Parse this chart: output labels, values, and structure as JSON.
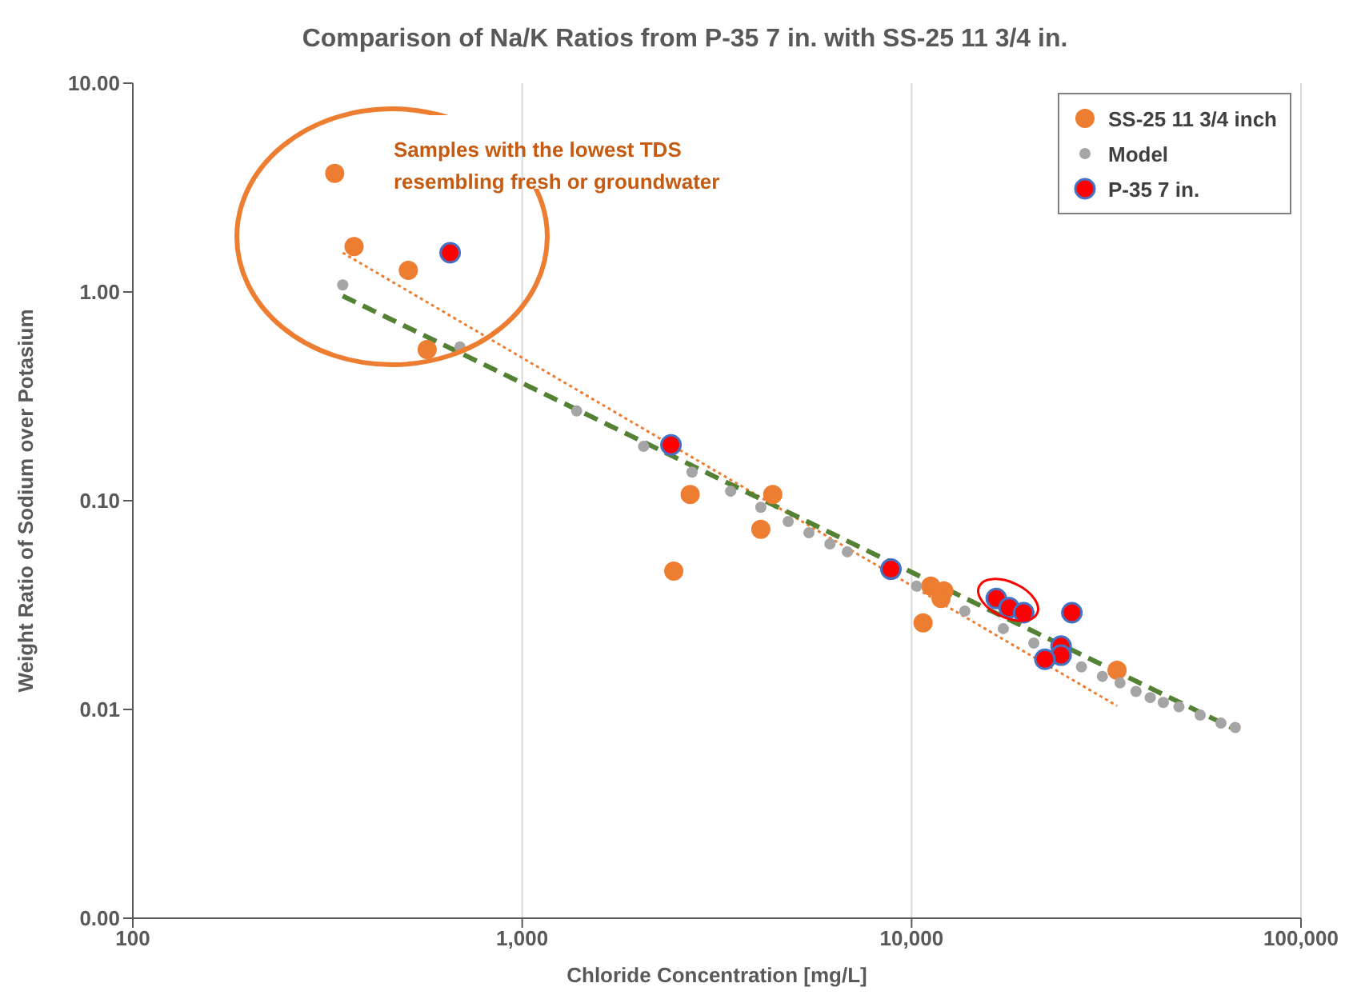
{
  "chart_data": {
    "type": "scatter",
    "title": "Comparison of Na/K Ratios from P-35 7 in. with SS-25 11 3/4 in.",
    "xlabel": "Chloride Concentration [mg/L]",
    "ylabel": "Weight Ratio of Sodium over Potasium",
    "log": "xy",
    "grid": "x",
    "legend": "top right",
    "marker": "circle",
    "xlim": [
      100,
      100000
    ],
    "xticks": [
      {
        "value": 100,
        "label": "100"
      },
      {
        "value": 1000,
        "label": "1,000"
      },
      {
        "value": 10000,
        "label": "10,000"
      },
      {
        "value": 100000,
        "label": "100,000"
      }
    ],
    "ylim": [
      0.001,
      10
    ],
    "yticks": [
      {
        "value": 0.001,
        "label": "0.00"
      },
      {
        "value": 0.01,
        "label": "0.01"
      },
      {
        "value": 0.1,
        "label": "0.10"
      },
      {
        "value": 1,
        "label": "1.00"
      },
      {
        "value": 10,
        "label": "10.00"
      }
    ],
    "annotations": [
      "Samples with the lowest TDS resembling fresh or groundwater"
    ],
    "series": [
      {
        "type": "line",
        "color": "#ed7d31",
        "line_style": "dotted",
        "marker": "none",
        "x": [
          346,
          33700
        ],
        "values": [
          1.54,
          0.0104
        ]
      },
      {
        "type": "line",
        "color": "#548235",
        "line_style": "dashed",
        "marker": "none",
        "x": [
          346,
          69000
        ],
        "values": [
          0.957,
          0.0079
        ]
      },
      {
        "name": "SS-25 11 3/4 inch",
        "color": "#ed7d31",
        "x": [
          330,
          370,
          510,
          570,
          2700,
          4400,
          4100,
          2450,
          11200,
          12100,
          11900,
          10700,
          33700
        ],
        "values": [
          3.7,
          1.65,
          1.27,
          0.53,
          0.107,
          0.107,
          0.073,
          0.046,
          0.039,
          0.037,
          0.034,
          0.026,
          0.0154
        ]
      },
      {
        "name": "Model",
        "color": "#a5a5a5",
        "x": [
          346,
          692,
          1380,
          2050,
          2730,
          3430,
          4100,
          4820,
          5450,
          6170,
          6840,
          8850,
          10300,
          13700,
          17200,
          20600,
          27300,
          30900,
          34300,
          37700,
          41000,
          44300,
          48600,
          55100,
          62300,
          67800
        ],
        "values": [
          1.08,
          0.545,
          0.269,
          0.182,
          0.137,
          0.111,
          0.093,
          0.0795,
          0.0703,
          0.0621,
          0.0569,
          null,
          0.039,
          0.0296,
          0.0244,
          0.0208,
          0.016,
          0.0144,
          0.0134,
          0.0122,
          0.0114,
          0.0108,
          0.0103,
          0.0094,
          0.0086,
          0.0082
        ]
      },
      {
        "name": "P-35 7 in.",
        "color": "#ff0000",
        "x": [
          653,
          2410,
          8850,
          16500,
          17800,
          19400,
          25800,
          24200,
          24200,
          22000
        ],
        "values": [
          1.54,
          0.185,
          0.047,
          0.034,
          0.0307,
          0.0291,
          0.0291,
          0.0201,
          0.0182,
          0.0174
        ]
      }
    ]
  }
}
